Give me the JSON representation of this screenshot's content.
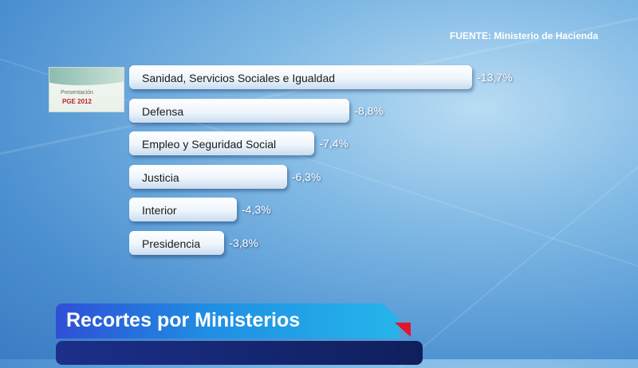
{
  "source": "FUENTE: Ministerio de Hacienda",
  "logo": {
    "line1": "Presentación",
    "line2": "PGE 2012"
  },
  "title": "Recortes por Ministerios",
  "colors": {
    "bar": "#ffffff",
    "title_bar": "#1f8fe3",
    "accent": "#e0162b"
  },
  "chart_data": {
    "type": "bar",
    "orientation": "horizontal",
    "categories": [
      "Sanidad, Servicios Sociales e Igualdad",
      "Defensa",
      "Empleo y Seguridad Social",
      "Justicia",
      "Interior",
      "Presidencia"
    ],
    "values": [
      -13.7,
      -8.8,
      -7.4,
      -6.3,
      -4.3,
      -3.8
    ],
    "labels": [
      "-13,7%",
      "-8,8%",
      "-7,4%",
      "-6,3%",
      "-4,3%",
      "-3,8%"
    ],
    "unit": "%",
    "grid": false
  }
}
